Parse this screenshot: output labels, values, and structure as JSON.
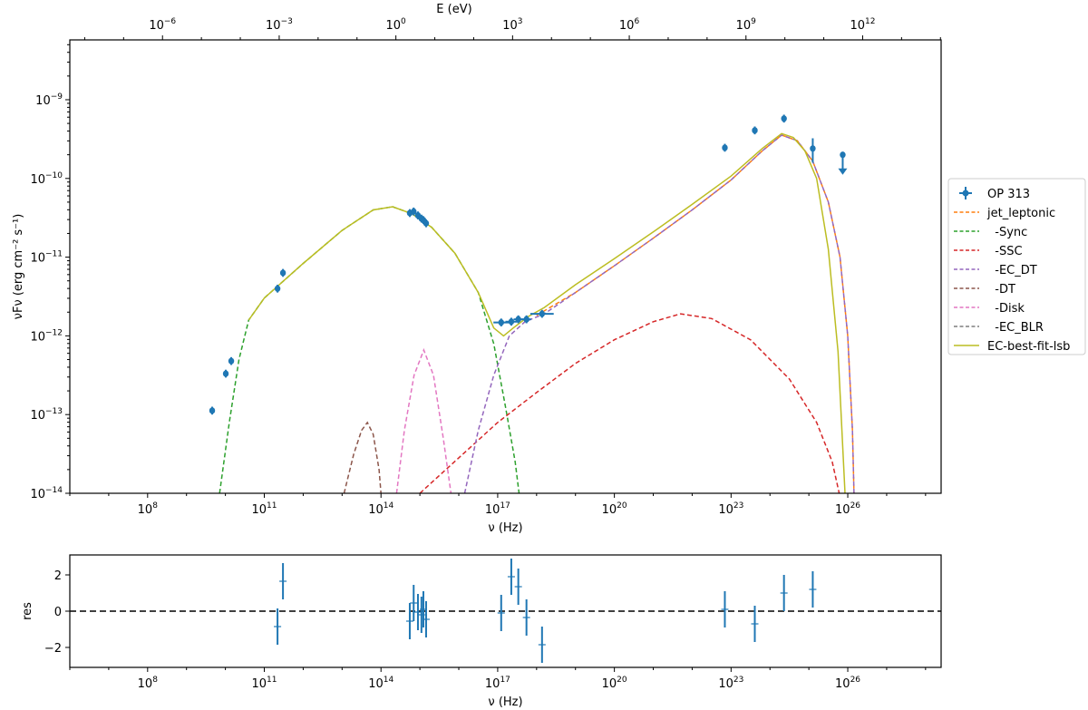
{
  "chart_data": [
    {
      "id": "sed",
      "type": "line",
      "title": "",
      "xlabel": "ν  (Hz)",
      "ylabel": "νFν  (erg cm⁻² s⁻¹)",
      "xscale": "log",
      "yscale": "log",
      "xlim_log10": [
        6.0,
        28.4
      ],
      "ylim_log10": [
        -14.0,
        -8.24
      ],
      "x_ticks_log10": [
        8,
        11,
        14,
        17,
        20,
        23,
        26
      ],
      "y_ticks_log10": [
        -14,
        -13,
        -12,
        -11,
        -10,
        -9
      ],
      "top_axis": {
        "label": "E (eV)",
        "ticks_log10": [
          -6,
          -3,
          0,
          3,
          6,
          9,
          12
        ],
        "hz_per_ev_log10": 14.383
      },
      "grid": false,
      "legend_position": "right-outside",
      "series": [
        {
          "name": "OP 313",
          "kind": "errorbar",
          "color": "#1f77b4",
          "points_log10": [
            {
              "x": 9.66,
              "y": -12.95
            },
            {
              "x": 10.01,
              "y": -12.48
            },
            {
              "x": 10.15,
              "y": -12.32
            },
            {
              "x": 11.34,
              "y": -11.4
            },
            {
              "x": 11.48,
              "y": -11.2
            },
            {
              "x": 14.74,
              "y": -10.44
            },
            {
              "x": 14.84,
              "y": -10.42
            },
            {
              "x": 14.95,
              "y": -10.47
            },
            {
              "x": 15.04,
              "y": -10.51
            },
            {
              "x": 15.09,
              "y": -10.53
            },
            {
              "x": 15.16,
              "y": -10.57
            },
            {
              "x": 17.09,
              "y": -11.83,
              "xerr": 0.2
            },
            {
              "x": 17.35,
              "y": -11.82,
              "xerr": 0.15
            },
            {
              "x": 17.53,
              "y": -11.79,
              "xerr": 0.12
            },
            {
              "x": 17.74,
              "y": -11.79,
              "xerr": 0.12
            },
            {
              "x": 18.14,
              "y": -11.72,
              "xerr": 0.3
            },
            {
              "x": 22.84,
              "y": -9.61
            },
            {
              "x": 23.61,
              "y": -9.39
            },
            {
              "x": 24.36,
              "y": -9.24
            },
            {
              "x": 25.1,
              "y": -9.62,
              "yerr_up": 0.13,
              "yerr_dn": 0.18
            },
            {
              "x": 25.87,
              "y": -9.7,
              "upper_limit": true
            }
          ]
        },
        {
          "name": "jet_leptonic",
          "kind": "dashed",
          "color": "#ff7f0e",
          "points_log10": [
            [
              18.0,
              -11.74
            ],
            [
              19,
              -11.45
            ],
            [
              20,
              -11.11
            ],
            [
              21,
              -10.76
            ],
            [
              22,
              -10.4
            ],
            [
              23,
              -10.02
            ],
            [
              23.8,
              -9.65
            ],
            [
              24.3,
              -9.45
            ],
            [
              24.7,
              -9.52
            ],
            [
              25.1,
              -9.78
            ],
            [
              25.5,
              -10.3
            ],
            [
              25.8,
              -11.0
            ],
            [
              26.0,
              -12.0
            ],
            [
              26.12,
              -13.2
            ],
            [
              26.16,
              -14.0
            ]
          ]
        },
        {
          "name": "-Sync",
          "kind": "dashed",
          "color": "#2ca02c",
          "points_log10": [
            [
              9.85,
              -14.0
            ],
            [
              10.1,
              -13.1
            ],
            [
              10.35,
              -12.3
            ],
            [
              10.6,
              -11.8
            ],
            [
              11.0,
              -11.52
            ],
            [
              12.0,
              -11.08
            ],
            [
              13.0,
              -10.66
            ],
            [
              13.8,
              -10.4
            ],
            [
              14.3,
              -10.36
            ],
            [
              14.8,
              -10.45
            ],
            [
              15.3,
              -10.62
            ],
            [
              15.9,
              -10.95
            ],
            [
              16.5,
              -11.45
            ],
            [
              16.9,
              -12.1
            ],
            [
              17.2,
              -12.9
            ],
            [
              17.45,
              -13.6
            ],
            [
              17.55,
              -14.0
            ]
          ]
        },
        {
          "name": "-SSC",
          "kind": "dashed",
          "color": "#d62728",
          "points_log10": [
            [
              15.0,
              -14.0
            ],
            [
              16,
              -13.55
            ],
            [
              17,
              -13.1
            ],
            [
              18,
              -12.72
            ],
            [
              19,
              -12.35
            ],
            [
              20,
              -12.05
            ],
            [
              21,
              -11.82
            ],
            [
              21.7,
              -11.72
            ],
            [
              22.5,
              -11.78
            ],
            [
              23.5,
              -12.05
            ],
            [
              24.5,
              -12.55
            ],
            [
              25.2,
              -13.1
            ],
            [
              25.6,
              -13.6
            ],
            [
              25.78,
              -14.0
            ]
          ]
        },
        {
          "name": "-EC_DT",
          "kind": "dashed",
          "color": "#9467bd",
          "points_log10": [
            [
              16.15,
              -14.0
            ],
            [
              16.5,
              -13.2
            ],
            [
              16.9,
              -12.5
            ],
            [
              17.3,
              -12.0
            ],
            [
              17.7,
              -11.82
            ],
            [
              18.2,
              -11.72
            ],
            [
              19,
              -11.45
            ],
            [
              20,
              -11.11
            ],
            [
              21,
              -10.76
            ],
            [
              22,
              -10.4
            ],
            [
              23,
              -10.02
            ],
            [
              23.8,
              -9.65
            ],
            [
              24.3,
              -9.45
            ],
            [
              24.7,
              -9.52
            ],
            [
              25.1,
              -9.78
            ],
            [
              25.5,
              -10.3
            ],
            [
              25.8,
              -11.0
            ],
            [
              26.0,
              -12.0
            ],
            [
              26.12,
              -13.2
            ],
            [
              26.16,
              -14.0
            ]
          ]
        },
        {
          "name": "-DT",
          "kind": "dashed",
          "color": "#8c564b",
          "points_log10": [
            [
              13.05,
              -14.0
            ],
            [
              13.3,
              -13.5
            ],
            [
              13.5,
              -13.2
            ],
            [
              13.65,
              -13.1
            ],
            [
              13.8,
              -13.25
            ],
            [
              13.95,
              -13.7
            ],
            [
              14.0,
              -14.0
            ]
          ]
        },
        {
          "name": "-Disk",
          "kind": "dashed",
          "color": "#e377c2",
          "points_log10": [
            [
              14.4,
              -14.0
            ],
            [
              14.6,
              -13.2
            ],
            [
              14.85,
              -12.5
            ],
            [
              15.1,
              -12.18
            ],
            [
              15.35,
              -12.5
            ],
            [
              15.6,
              -13.3
            ],
            [
              15.8,
              -14.0
            ]
          ]
        },
        {
          "name": "-EC_BLR",
          "kind": "dashed",
          "color": "#7f7f7f",
          "points_log10": []
        },
        {
          "name": "EC-best-fit-lsb",
          "kind": "solid",
          "color": "#bcbd22",
          "points_log10": [
            [
              10.6,
              -11.8
            ],
            [
              11.0,
              -11.52
            ],
            [
              12.0,
              -11.08
            ],
            [
              13.0,
              -10.66
            ],
            [
              13.8,
              -10.4
            ],
            [
              14.3,
              -10.36
            ],
            [
              14.8,
              -10.45
            ],
            [
              15.3,
              -10.62
            ],
            [
              15.9,
              -10.95
            ],
            [
              16.5,
              -11.45
            ],
            [
              16.9,
              -11.9
            ],
            [
              17.15,
              -12.0
            ],
            [
              17.4,
              -11.9
            ],
            [
              17.8,
              -11.75
            ],
            [
              18.2,
              -11.64
            ],
            [
              19,
              -11.35
            ],
            [
              20,
              -11.02
            ],
            [
              21,
              -10.68
            ],
            [
              22,
              -10.33
            ],
            [
              23,
              -9.97
            ],
            [
              23.8,
              -9.62
            ],
            [
              24.3,
              -9.43
            ],
            [
              24.6,
              -9.48
            ],
            [
              24.9,
              -9.65
            ],
            [
              25.2,
              -10.0
            ],
            [
              25.5,
              -10.9
            ],
            [
              25.75,
              -12.2
            ],
            [
              25.93,
              -14.0
            ]
          ]
        }
      ]
    },
    {
      "id": "residuals",
      "type": "scatter",
      "xlabel": "ν  (Hz)",
      "ylabel": "res",
      "xscale": "log",
      "xlim_log10": [
        6.0,
        28.4
      ],
      "ylim": [
        -3.1,
        3.1
      ],
      "x_ticks_log10": [
        8,
        11,
        14,
        17,
        20,
        23,
        26
      ],
      "y_ticks": [
        -2,
        0,
        2
      ],
      "reference_line": 0,
      "color": "#1f77b4",
      "points": [
        {
          "x": 11.34,
          "y": -0.85,
          "err": 1.0
        },
        {
          "x": 11.48,
          "y": 1.65,
          "err": 1.0
        },
        {
          "x": 14.74,
          "y": -0.55,
          "err": 1.0
        },
        {
          "x": 14.84,
          "y": 0.45,
          "err": 1.0
        },
        {
          "x": 14.95,
          "y": -0.05,
          "err": 1.0
        },
        {
          "x": 15.04,
          "y": -0.2,
          "err": 1.0
        },
        {
          "x": 15.09,
          "y": 0.1,
          "err": 1.0
        },
        {
          "x": 15.16,
          "y": -0.45,
          "err": 1.0
        },
        {
          "x": 17.09,
          "y": -0.1,
          "err": 1.0
        },
        {
          "x": 17.35,
          "y": 1.9,
          "err": 1.0
        },
        {
          "x": 17.53,
          "y": 1.35,
          "err": 1.0
        },
        {
          "x": 17.74,
          "y": -0.35,
          "err": 1.0
        },
        {
          "x": 18.14,
          "y": -1.85,
          "err": 1.0
        },
        {
          "x": 22.84,
          "y": 0.1,
          "err": 1.0
        },
        {
          "x": 23.61,
          "y": -0.7,
          "err": 1.0
        },
        {
          "x": 24.36,
          "y": 1.0,
          "err": 1.0
        },
        {
          "x": 25.1,
          "y": 1.2,
          "err": 1.0
        }
      ]
    }
  ],
  "legend": {
    "items": [
      {
        "label": "OP 313",
        "style": "errorbar",
        "color": "#1f77b4"
      },
      {
        "label": "jet_leptonic",
        "style": "dashed",
        "color": "#ff7f0e"
      },
      {
        "label": "  -Sync",
        "style": "dashed",
        "color": "#2ca02c"
      },
      {
        "label": "  -SSC",
        "style": "dashed",
        "color": "#d62728"
      },
      {
        "label": "  -EC_DT",
        "style": "dashed",
        "color": "#9467bd"
      },
      {
        "label": "  -DT",
        "style": "dashed",
        "color": "#8c564b"
      },
      {
        "label": "  -Disk",
        "style": "dashed",
        "color": "#e377c2"
      },
      {
        "label": "  -EC_BLR",
        "style": "dashed",
        "color": "#7f7f7f"
      },
      {
        "label": "EC-best-fit-lsb",
        "style": "solid",
        "color": "#bcbd22"
      }
    ]
  }
}
